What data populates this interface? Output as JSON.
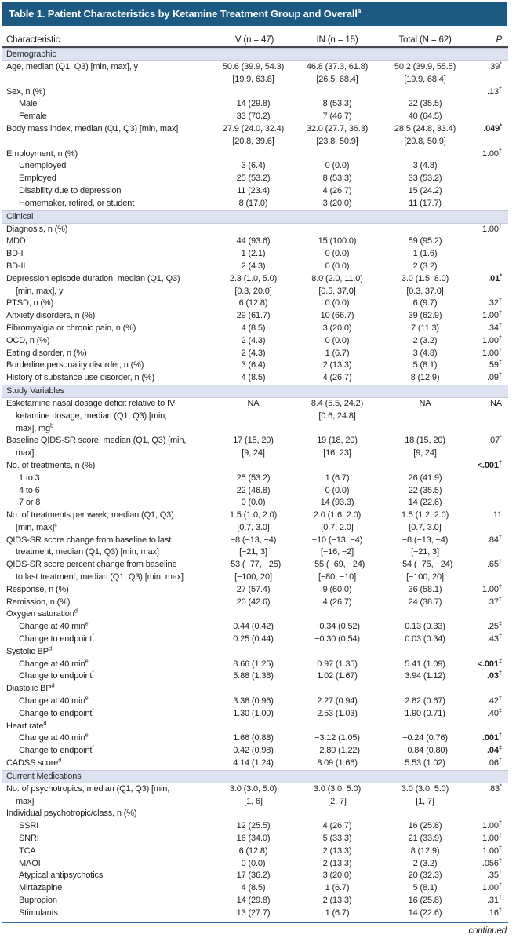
{
  "header": {
    "title": "Table 1. Patient Characteristics by Ketamine Treatment Group and Overall",
    "title_sup": "a"
  },
  "columns": [
    "Characteristic",
    "IV (n = 47)",
    "IN (n = 15)",
    "Total (N = 62)",
    "P"
  ],
  "continued_label": "continued",
  "colors": {
    "title_bar": "#1c5a81",
    "section_bar": "#dde2f0",
    "header_rule": "#46464e",
    "bottom_rule": "#2e6da4",
    "text": "#1e1e1e"
  },
  "sections": [
    {
      "name": "Demographic",
      "rows": [
        {
          "label": [
            "Age, median (Q1, Q3) [min, max], y"
          ],
          "indent": 0,
          "iv": [
            "50.6 (39.9, 54.3)",
            "[19.9, 63.8]"
          ],
          "in": [
            "46.8 (37.3, 61.8)",
            "[26.5, 68.4]"
          ],
          "total": [
            "50.2 (39.9, 55.5)",
            "[19.9, 68.4]"
          ],
          "p": ".39^{*}",
          "p_bold": false
        },
        {
          "label": [
            "Sex, n (%)"
          ],
          "indent": 0,
          "iv": [],
          "in": [],
          "total": [],
          "p": ".13^{†}",
          "p_bold": false
        },
        {
          "label": [
            "Male"
          ],
          "indent": 1,
          "iv": [
            "14 (29.8)"
          ],
          "in": [
            "8 (53.3)"
          ],
          "total": [
            "22 (35.5)"
          ],
          "p": "",
          "p_bold": false
        },
        {
          "label": [
            "Female"
          ],
          "indent": 1,
          "iv": [
            "33 (70.2)"
          ],
          "in": [
            "7 (46.7)"
          ],
          "total": [
            "40 (64.5)"
          ],
          "p": "",
          "p_bold": false
        },
        {
          "label": [
            "Body mass index, median (Q1, Q3) [min, max]"
          ],
          "indent": 0,
          "iv": [
            "27.9 (24.0, 32.4)",
            "[20.8, 39.6]"
          ],
          "in": [
            "32.0 (27.7, 36.3)",
            "[23.8, 50.9]"
          ],
          "total": [
            "28.5 (24.8, 33.4)",
            "[20.8, 50.9]"
          ],
          "p": ".049^{*}",
          "p_bold": true
        },
        {
          "label": [
            "Employment, n (%)"
          ],
          "indent": 0,
          "iv": [],
          "in": [],
          "total": [],
          "p": "1.00^{†}",
          "p_bold": false
        },
        {
          "label": [
            "Unemployed"
          ],
          "indent": 1,
          "iv": [
            "3 (6.4)"
          ],
          "in": [
            "0 (0.0)"
          ],
          "total": [
            "3 (4.8)"
          ],
          "p": "",
          "p_bold": false
        },
        {
          "label": [
            "Employed"
          ],
          "indent": 1,
          "iv": [
            "25 (53.2)"
          ],
          "in": [
            "8 (53.3)"
          ],
          "total": [
            "33 (53.2)"
          ],
          "p": "",
          "p_bold": false
        },
        {
          "label": [
            "Disability due to depression"
          ],
          "indent": 1,
          "iv": [
            "11 (23.4)"
          ],
          "in": [
            "4 (26.7)"
          ],
          "total": [
            "15 (24.2)"
          ],
          "p": "",
          "p_bold": false
        },
        {
          "label": [
            "Homemaker, retired, or student"
          ],
          "indent": 1,
          "iv": [
            "8 (17.0)"
          ],
          "in": [
            "3 (20.0)"
          ],
          "total": [
            "11 (17.7)"
          ],
          "p": "",
          "p_bold": false
        }
      ]
    },
    {
      "name": "Clinical",
      "rows": [
        {
          "label": [
            "Diagnosis, n (%)"
          ],
          "indent": 0,
          "iv": [],
          "in": [],
          "total": [],
          "p": "1.00^{†}",
          "p_bold": false
        },
        {
          "label": [
            "MDD"
          ],
          "indent": 0,
          "iv": [
            "44 (93.6)"
          ],
          "in": [
            "15 (100.0)"
          ],
          "total": [
            "59 (95.2)"
          ],
          "p": "",
          "p_bold": false
        },
        {
          "label": [
            "BD-I"
          ],
          "indent": 0,
          "iv": [
            "1 (2.1)"
          ],
          "in": [
            "0 (0.0)"
          ],
          "total": [
            "1 (1.6)"
          ],
          "p": "",
          "p_bold": false
        },
        {
          "label": [
            "BD-II"
          ],
          "indent": 0,
          "iv": [
            "2 (4.3)"
          ],
          "in": [
            "0 (0.0)"
          ],
          "total": [
            "2 (3.2)"
          ],
          "p": "",
          "p_bold": false
        },
        {
          "label": [
            "Depression episode duration, median (Q1, Q3)",
            "[min, max], y"
          ],
          "indent": 0,
          "iv": [
            "2.3 (1.0, 5.0)",
            "[0.3, 20.0]"
          ],
          "in": [
            "8.0 (2.0, 11.0)",
            "[0.5, 37.0]"
          ],
          "total": [
            "3.0 (1.5, 8.0)",
            "[0.3, 37.0]"
          ],
          "p": ".01^{*}",
          "p_bold": true
        },
        {
          "label": [
            "PTSD, n (%)"
          ],
          "indent": 0,
          "iv": [
            "6 (12.8)"
          ],
          "in": [
            "0 (0.0)"
          ],
          "total": [
            "6 (9.7)"
          ],
          "p": ".32^{†}",
          "p_bold": false
        },
        {
          "label": [
            "Anxiety disorders, n (%)"
          ],
          "indent": 0,
          "iv": [
            "29 (61.7)"
          ],
          "in": [
            "10 (66.7)"
          ],
          "total": [
            "39 (62.9)"
          ],
          "p": "1.00^{†}",
          "p_bold": false
        },
        {
          "label": [
            "Fibromyalgia or chronic pain, n (%)"
          ],
          "indent": 0,
          "iv": [
            "4 (8.5)"
          ],
          "in": [
            "3 (20.0)"
          ],
          "total": [
            "7 (11.3)"
          ],
          "p": ".34^{†}",
          "p_bold": false
        },
        {
          "label": [
            "OCD, n (%)"
          ],
          "indent": 0,
          "iv": [
            "2 (4.3)"
          ],
          "in": [
            "0 (0.0)"
          ],
          "total": [
            "2 (3.2)"
          ],
          "p": "1.00^{†}",
          "p_bold": false
        },
        {
          "label": [
            "Eating disorder, n (%)"
          ],
          "indent": 0,
          "iv": [
            "2 (4.3)"
          ],
          "in": [
            "1 (6.7)"
          ],
          "total": [
            "3 (4.8)"
          ],
          "p": "1.00^{†}",
          "p_bold": false
        },
        {
          "label": [
            "Borderline personality disorder, n (%)"
          ],
          "indent": 0,
          "iv": [
            "3 (6.4)"
          ],
          "in": [
            "2 (13.3)"
          ],
          "total": [
            "5 (8.1)"
          ],
          "p": ".59^{†}",
          "p_bold": false
        },
        {
          "label": [
            "History of substance use disorder, n (%)"
          ],
          "indent": 0,
          "iv": [
            "4 (8.5)"
          ],
          "in": [
            "4 (26.7)"
          ],
          "total": [
            "8 (12.9)"
          ],
          "p": ".09^{†}",
          "p_bold": false
        }
      ]
    },
    {
      "name": "Study Variables",
      "rows": [
        {
          "label": [
            "Esketamine nasal dosage deficit relative to IV",
            "ketamine dosage, median (Q1, Q3) [min,",
            "max], mg^{b}"
          ],
          "indent": 0,
          "iv": [
            "NA"
          ],
          "in": [
            "8.4 (5.5, 24.2)",
            "[0.6, 24.8]"
          ],
          "total": [
            "NA"
          ],
          "p": "NA",
          "p_bold": false
        },
        {
          "label": [
            "Baseline QIDS-SR score, median (Q1, Q3) [min,",
            "max]"
          ],
          "indent": 0,
          "iv": [
            "17 (15, 20)",
            "[9, 24]"
          ],
          "in": [
            "19 (18, 20)",
            "[16, 23]"
          ],
          "total": [
            "18 (15, 20)",
            "[9, 24]"
          ],
          "p": ".07^{*}",
          "p_bold": false
        },
        {
          "label": [
            "No. of treatments, n (%)"
          ],
          "indent": 0,
          "iv": [],
          "in": [],
          "total": [],
          "p": "<.001^{†}",
          "p_bold": true
        },
        {
          "label": [
            "1 to 3"
          ],
          "indent": 1,
          "iv": [
            "25 (53.2)"
          ],
          "in": [
            "1 (6.7)"
          ],
          "total": [
            "26 (41.9)"
          ],
          "p": "",
          "p_bold": false
        },
        {
          "label": [
            "4 to 6"
          ],
          "indent": 1,
          "iv": [
            "22 (46.8)"
          ],
          "in": [
            "0 (0.0)"
          ],
          "total": [
            "22 (35.5)"
          ],
          "p": "",
          "p_bold": false
        },
        {
          "label": [
            "7 or 8"
          ],
          "indent": 1,
          "iv": [
            "0 (0.0)"
          ],
          "in": [
            "14 (93.3)"
          ],
          "total": [
            "14 (22.6)"
          ],
          "p": "",
          "p_bold": false
        },
        {
          "label": [
            "No. of treatments per week, median (Q1, Q3)",
            "[min, max]^{c}"
          ],
          "indent": 0,
          "iv": [
            "1.5 (1.0, 2.0)",
            "[0.7, 3.0]"
          ],
          "in": [
            "2.0 (1.6, 2.0)",
            "[0.7, 2.0]"
          ],
          "total": [
            "1.5 (1.2, 2.0)",
            "[0.7, 3.0]"
          ],
          "p": ".11",
          "p_bold": false
        },
        {
          "label": [
            "QIDS-SR score change from baseline to last",
            "treatment, median (Q1, Q3) [min, max]"
          ],
          "indent": 0,
          "iv": [
            "−8 (−13, −4)",
            "[−21, 3]"
          ],
          "in": [
            "−10 (−13, −4)",
            "[−16, −2]"
          ],
          "total": [
            "−8 (−13, −4)",
            "[−21, 3]"
          ],
          "p": ".84^{†}",
          "p_bold": false
        },
        {
          "label": [
            "QIDS-SR score percent change from baseline",
            "to last treatment, median (Q1, Q3) [min, max]"
          ],
          "indent": 0,
          "iv": [
            "−53 (−77, −25)",
            "[−100, 20]"
          ],
          "in": [
            "−55 (−69, −24)",
            "[−80, −10]"
          ],
          "total": [
            "−54 (−75, −24)",
            "[−100, 20]"
          ],
          "p": ".65^{†}",
          "p_bold": false
        },
        {
          "label": [
            "Response, n (%)"
          ],
          "indent": 0,
          "iv": [
            "27 (57.4)"
          ],
          "in": [
            "9 (60.0)"
          ],
          "total": [
            "36 (58.1)"
          ],
          "p": "1.00^{†}",
          "p_bold": false
        },
        {
          "label": [
            "Remission, n (%)"
          ],
          "indent": 0,
          "iv": [
            "20 (42.6)"
          ],
          "in": [
            "4 (26.7)"
          ],
          "total": [
            "24 (38.7)"
          ],
          "p": ".37^{†}",
          "p_bold": false
        },
        {
          "label": [
            "Oxygen saturation^{d}"
          ],
          "indent": 0,
          "iv": [],
          "in": [],
          "total": [],
          "p": "",
          "p_bold": false
        },
        {
          "label": [
            "Change at 40 min^{e}"
          ],
          "indent": 1,
          "iv": [
            "0.44 (0.42)"
          ],
          "in": [
            "−0.34 (0.52)"
          ],
          "total": [
            "0.13 (0.33)"
          ],
          "p": ".25^{‡}",
          "p_bold": false
        },
        {
          "label": [
            "Change to endpoint^{f}"
          ],
          "indent": 1,
          "iv": [
            "0.25 (0.44)"
          ],
          "in": [
            "−0.30 (0.54)"
          ],
          "total": [
            "0.03 (0.34)"
          ],
          "p": ".43^{‡}",
          "p_bold": false
        },
        {
          "label": [
            "Systolic BP^{d}"
          ],
          "indent": 0,
          "iv": [],
          "in": [],
          "total": [],
          "p": "",
          "p_bold": false
        },
        {
          "label": [
            "Change at 40 min^{e}"
          ],
          "indent": 1,
          "iv": [
            "8.66 (1.25)"
          ],
          "in": [
            "0.97 (1.35)"
          ],
          "total": [
            "5.41 (1.09)"
          ],
          "p": "<.001^{‡}",
          "p_bold": true
        },
        {
          "label": [
            "Change to endpoint^{f}"
          ],
          "indent": 1,
          "iv": [
            "5.88 (1.38)"
          ],
          "in": [
            "1.02 (1.67)"
          ],
          "total": [
            "3.94 (1.12)"
          ],
          "p": ".03^{‡}",
          "p_bold": true
        },
        {
          "label": [
            "Diastolic BP^{d}"
          ],
          "indent": 0,
          "iv": [],
          "in": [],
          "total": [],
          "p": "",
          "p_bold": false
        },
        {
          "label": [
            "Change at 40 min^{e}"
          ],
          "indent": 1,
          "iv": [
            "3.38 (0.96)"
          ],
          "in": [
            "2.27 (0.94)"
          ],
          "total": [
            "2.82 (0.67)"
          ],
          "p": ".42^{‡}",
          "p_bold": false
        },
        {
          "label": [
            "Change to endpoint^{f}"
          ],
          "indent": 1,
          "iv": [
            "1.30 (1.00)"
          ],
          "in": [
            "2.53 (1.03)"
          ],
          "total": [
            "1.90 (0.71)"
          ],
          "p": ".40^{‡}",
          "p_bold": false
        },
        {
          "label": [
            "Heart rate^{d}"
          ],
          "indent": 0,
          "iv": [],
          "in": [],
          "total": [],
          "p": "",
          "p_bold": false
        },
        {
          "label": [
            "Change at 40 min^{e}"
          ],
          "indent": 1,
          "iv": [
            "1.66 (0.88)"
          ],
          "in": [
            "−3.12 (1.05)"
          ],
          "total": [
            "−0.24 (0.76)"
          ],
          "p": ".001^{‡}",
          "p_bold": true
        },
        {
          "label": [
            "Change to endpoint^{f}"
          ],
          "indent": 1,
          "iv": [
            "0.42 (0.98)"
          ],
          "in": [
            "−2.80 (1.22)"
          ],
          "total": [
            "−0.84 (0.80)"
          ],
          "p": ".04^{‡}",
          "p_bold": true
        },
        {
          "label": [
            "CADSS score^{d}"
          ],
          "indent": 0,
          "iv": [
            "4.14 (1.24)"
          ],
          "in": [
            "8.09 (1.66)"
          ],
          "total": [
            "5.53 (1.02)"
          ],
          "p": ".06^{‡}",
          "p_bold": false
        }
      ]
    },
    {
      "name": "Current Medications",
      "rows": [
        {
          "label": [
            "No. of psychotropics, median (Q1, Q3) [min,",
            "max]"
          ],
          "indent": 0,
          "iv": [
            "3.0 (3.0, 5.0)",
            "[1, 6]"
          ],
          "in": [
            "3.0 (3.0, 5.0)",
            "[2, 7]"
          ],
          "total": [
            "3.0 (3.0, 5.0)",
            "[1, 7]"
          ],
          "p": ".83^{*}",
          "p_bold": false
        },
        {
          "label": [
            "Individual psychotropic/class, n (%)"
          ],
          "indent": 0,
          "iv": [],
          "in": [],
          "total": [],
          "p": "",
          "p_bold": false
        },
        {
          "label": [
            "SSRI"
          ],
          "indent": 1,
          "iv": [
            "12 (25.5)"
          ],
          "in": [
            "4 (26.7)"
          ],
          "total": [
            "16 (25.8)"
          ],
          "p": "1.00^{†}",
          "p_bold": false
        },
        {
          "label": [
            "SNRI"
          ],
          "indent": 1,
          "iv": [
            "16 (34.0)"
          ],
          "in": [
            "5 (33.3)"
          ],
          "total": [
            "21 (33.9)"
          ],
          "p": "1.00^{†}",
          "p_bold": false
        },
        {
          "label": [
            "TCA"
          ],
          "indent": 1,
          "iv": [
            "6 (12.8)"
          ],
          "in": [
            "2 (13.3)"
          ],
          "total": [
            "8 (12.9)"
          ],
          "p": "1.00^{†}",
          "p_bold": false
        },
        {
          "label": [
            "MAOI"
          ],
          "indent": 1,
          "iv": [
            "0 (0.0)"
          ],
          "in": [
            "2 (13.3)"
          ],
          "total": [
            "2 (3.2)"
          ],
          "p": ".056^{†}",
          "p_bold": false
        },
        {
          "label": [
            "Atypical antipsychotics"
          ],
          "indent": 1,
          "iv": [
            "17 (36.2)"
          ],
          "in": [
            "3 (20.0)"
          ],
          "total": [
            "20 (32.3)"
          ],
          "p": ".35^{†}",
          "p_bold": false
        },
        {
          "label": [
            "Mirtazapine"
          ],
          "indent": 1,
          "iv": [
            "4 (8.5)"
          ],
          "in": [
            "1 (6.7)"
          ],
          "total": [
            "5 (8.1)"
          ],
          "p": "1.00^{†}",
          "p_bold": false
        },
        {
          "label": [
            "Bupropion"
          ],
          "indent": 1,
          "iv": [
            "14 (29.8)"
          ],
          "in": [
            "2 (13.3)"
          ],
          "total": [
            "16 (25.8)"
          ],
          "p": ".31^{†}",
          "p_bold": false
        },
        {
          "label": [
            "Stimulants"
          ],
          "indent": 1,
          "iv": [
            "13 (27.7)"
          ],
          "in": [
            "1 (6.7)"
          ],
          "total": [
            "14 (22.6)"
          ],
          "p": ".16^{†}",
          "p_bold": false
        }
      ]
    }
  ]
}
